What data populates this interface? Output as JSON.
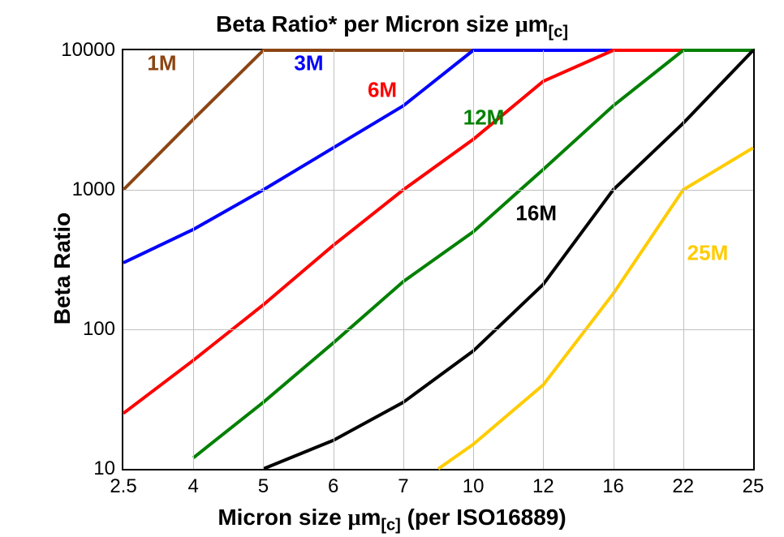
{
  "chart": {
    "type": "line",
    "title_pre": "Beta Ratio* per Micron size ",
    "title_mu": "μ",
    "title_m": "m",
    "title_sub": "[c]",
    "ylabel": "Beta Ratio",
    "xlabel_pre": "Micron size ",
    "xlabel_mu": "μ",
    "xlabel_m": "m",
    "xlabel_sub": "[c]",
    "xlabel_post": " (per ISO16889)",
    "background_color": "#ffffff",
    "grid_color": "#c0c0c0",
    "border_width": 2,
    "title_fontsize": 28,
    "label_fontsize": 28,
    "tick_fontsize": 24,
    "line_width": 4,
    "yscale": "log",
    "ylim": [
      10,
      10000
    ],
    "yticks": [
      10,
      100,
      1000,
      10000
    ],
    "ytick_labels": [
      "10",
      "100",
      "1000",
      "10000"
    ],
    "x_categories": [
      "2.5",
      "4",
      "5",
      "6",
      "7",
      "10",
      "12",
      "16",
      "22",
      "25"
    ],
    "x_count": 10,
    "series": [
      {
        "name": "1M",
        "color": "#8b4513",
        "label_color": "#8b4513",
        "label_x_idx": 0.55,
        "label_y": 8100,
        "points": [
          [
            0,
            1000
          ],
          [
            1,
            3200
          ],
          [
            2,
            10000
          ],
          [
            9,
            10000
          ]
        ]
      },
      {
        "name": "3M",
        "color": "#0000ff",
        "label_color": "#0000ff",
        "label_x_idx": 2.65,
        "label_y": 8100,
        "points": [
          [
            0,
            300
          ],
          [
            1,
            520
          ],
          [
            2,
            1000
          ],
          [
            3,
            2000
          ],
          [
            4,
            4000
          ],
          [
            5,
            10000
          ],
          [
            9,
            10000
          ]
        ]
      },
      {
        "name": "6M",
        "color": "#ff0000",
        "label_color": "#ff0000",
        "label_x_idx": 3.7,
        "label_y": 5200,
        "points": [
          [
            0,
            25
          ],
          [
            1,
            60
          ],
          [
            2,
            150
          ],
          [
            3,
            400
          ],
          [
            4,
            1000
          ],
          [
            5,
            2300
          ],
          [
            6,
            6000
          ],
          [
            7,
            10000
          ],
          [
            9,
            10000
          ]
        ]
      },
      {
        "name": "12M",
        "color": "#008000",
        "label_color": "#008000",
        "label_x_idx": 5.15,
        "label_y": 3300,
        "points": [
          [
            1,
            12
          ],
          [
            2,
            30
          ],
          [
            3,
            80
          ],
          [
            4,
            220
          ],
          [
            5,
            500
          ],
          [
            6,
            1400
          ],
          [
            7,
            4000
          ],
          [
            8,
            10000
          ],
          [
            9,
            10000
          ]
        ]
      },
      {
        "name": "16M",
        "color": "#000000",
        "label_color": "#000000",
        "label_x_idx": 5.9,
        "label_y": 680,
        "points": [
          [
            2,
            10
          ],
          [
            3,
            16
          ],
          [
            4,
            30
          ],
          [
            5,
            70
          ],
          [
            6,
            210
          ],
          [
            7,
            1000
          ],
          [
            8,
            3000
          ],
          [
            9,
            10000
          ]
        ]
      },
      {
        "name": "25M",
        "color": "#ffcc00",
        "label_color": "#ffcc00",
        "label_x_idx": 8.35,
        "label_y": 350,
        "points": [
          [
            4.5,
            10
          ],
          [
            5,
            15
          ],
          [
            6,
            40
          ],
          [
            7,
            180
          ],
          [
            8,
            1000
          ],
          [
            9,
            2000
          ]
        ]
      }
    ]
  }
}
